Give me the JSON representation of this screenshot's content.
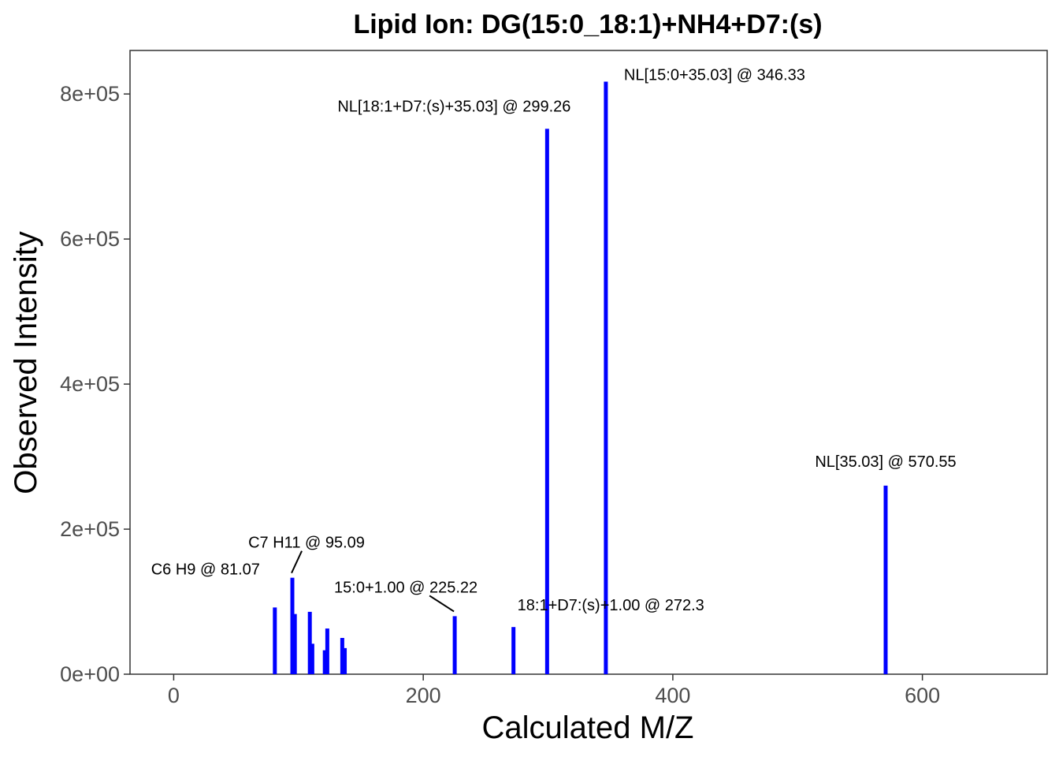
{
  "chart_data": {
    "type": "bar",
    "title": "Lipid Ion: DG(15:0_18:1)+NH4+D7:(s)",
    "xlabel": "Calculated M/Z",
    "ylabel": "Observed Intensity",
    "xlim": [
      -35,
      700
    ],
    "ylim": [
      0,
      860000
    ],
    "xticks": [
      0,
      200,
      400,
      600
    ],
    "xtick_labels": [
      "0",
      "200",
      "400",
      "600"
    ],
    "yticks": [
      0,
      200000,
      400000,
      600000,
      800000
    ],
    "ytick_labels": [
      "0e+00",
      "2e+05",
      "4e+05",
      "6e+05",
      "8e+05"
    ],
    "grid": false,
    "bar_color": "#0000ff",
    "peaks": [
      {
        "x": 81.07,
        "y": 92000
      },
      {
        "x": 95.09,
        "y": 133000
      },
      {
        "x": 97.1,
        "y": 83000
      },
      {
        "x": 109.1,
        "y": 86000
      },
      {
        "x": 111.1,
        "y": 42000
      },
      {
        "x": 121.1,
        "y": 33000
      },
      {
        "x": 123.1,
        "y": 63000
      },
      {
        "x": 135.1,
        "y": 50000
      },
      {
        "x": 137.1,
        "y": 36000
      },
      {
        "x": 225.22,
        "y": 80000
      },
      {
        "x": 272.3,
        "y": 65000
      },
      {
        "x": 299.26,
        "y": 752000
      },
      {
        "x": 346.33,
        "y": 817000
      },
      {
        "x": 570.55,
        "y": 260000
      }
    ],
    "annotations": [
      {
        "text": "C6 H9 @ 81.07",
        "x": 81.07,
        "y": 92000
      },
      {
        "text": "C7 H11 @ 95.09",
        "x": 95.09,
        "y": 133000
      },
      {
        "text": "15:0+1.00 @ 225.22",
        "x": 225.22,
        "y": 80000
      },
      {
        "text": "18:1+D7:(s)+1.00 @ 272.3",
        "x": 272.3,
        "y": 65000
      },
      {
        "text": "NL[18:1+D7:(s)+35.03] @ 299.26",
        "x": 299.26,
        "y": 752000
      },
      {
        "text": "NL[15:0+35.03] @ 346.33",
        "x": 346.33,
        "y": 817000
      },
      {
        "text": "NL[35.03] @ 570.55",
        "x": 570.55,
        "y": 260000
      }
    ]
  }
}
